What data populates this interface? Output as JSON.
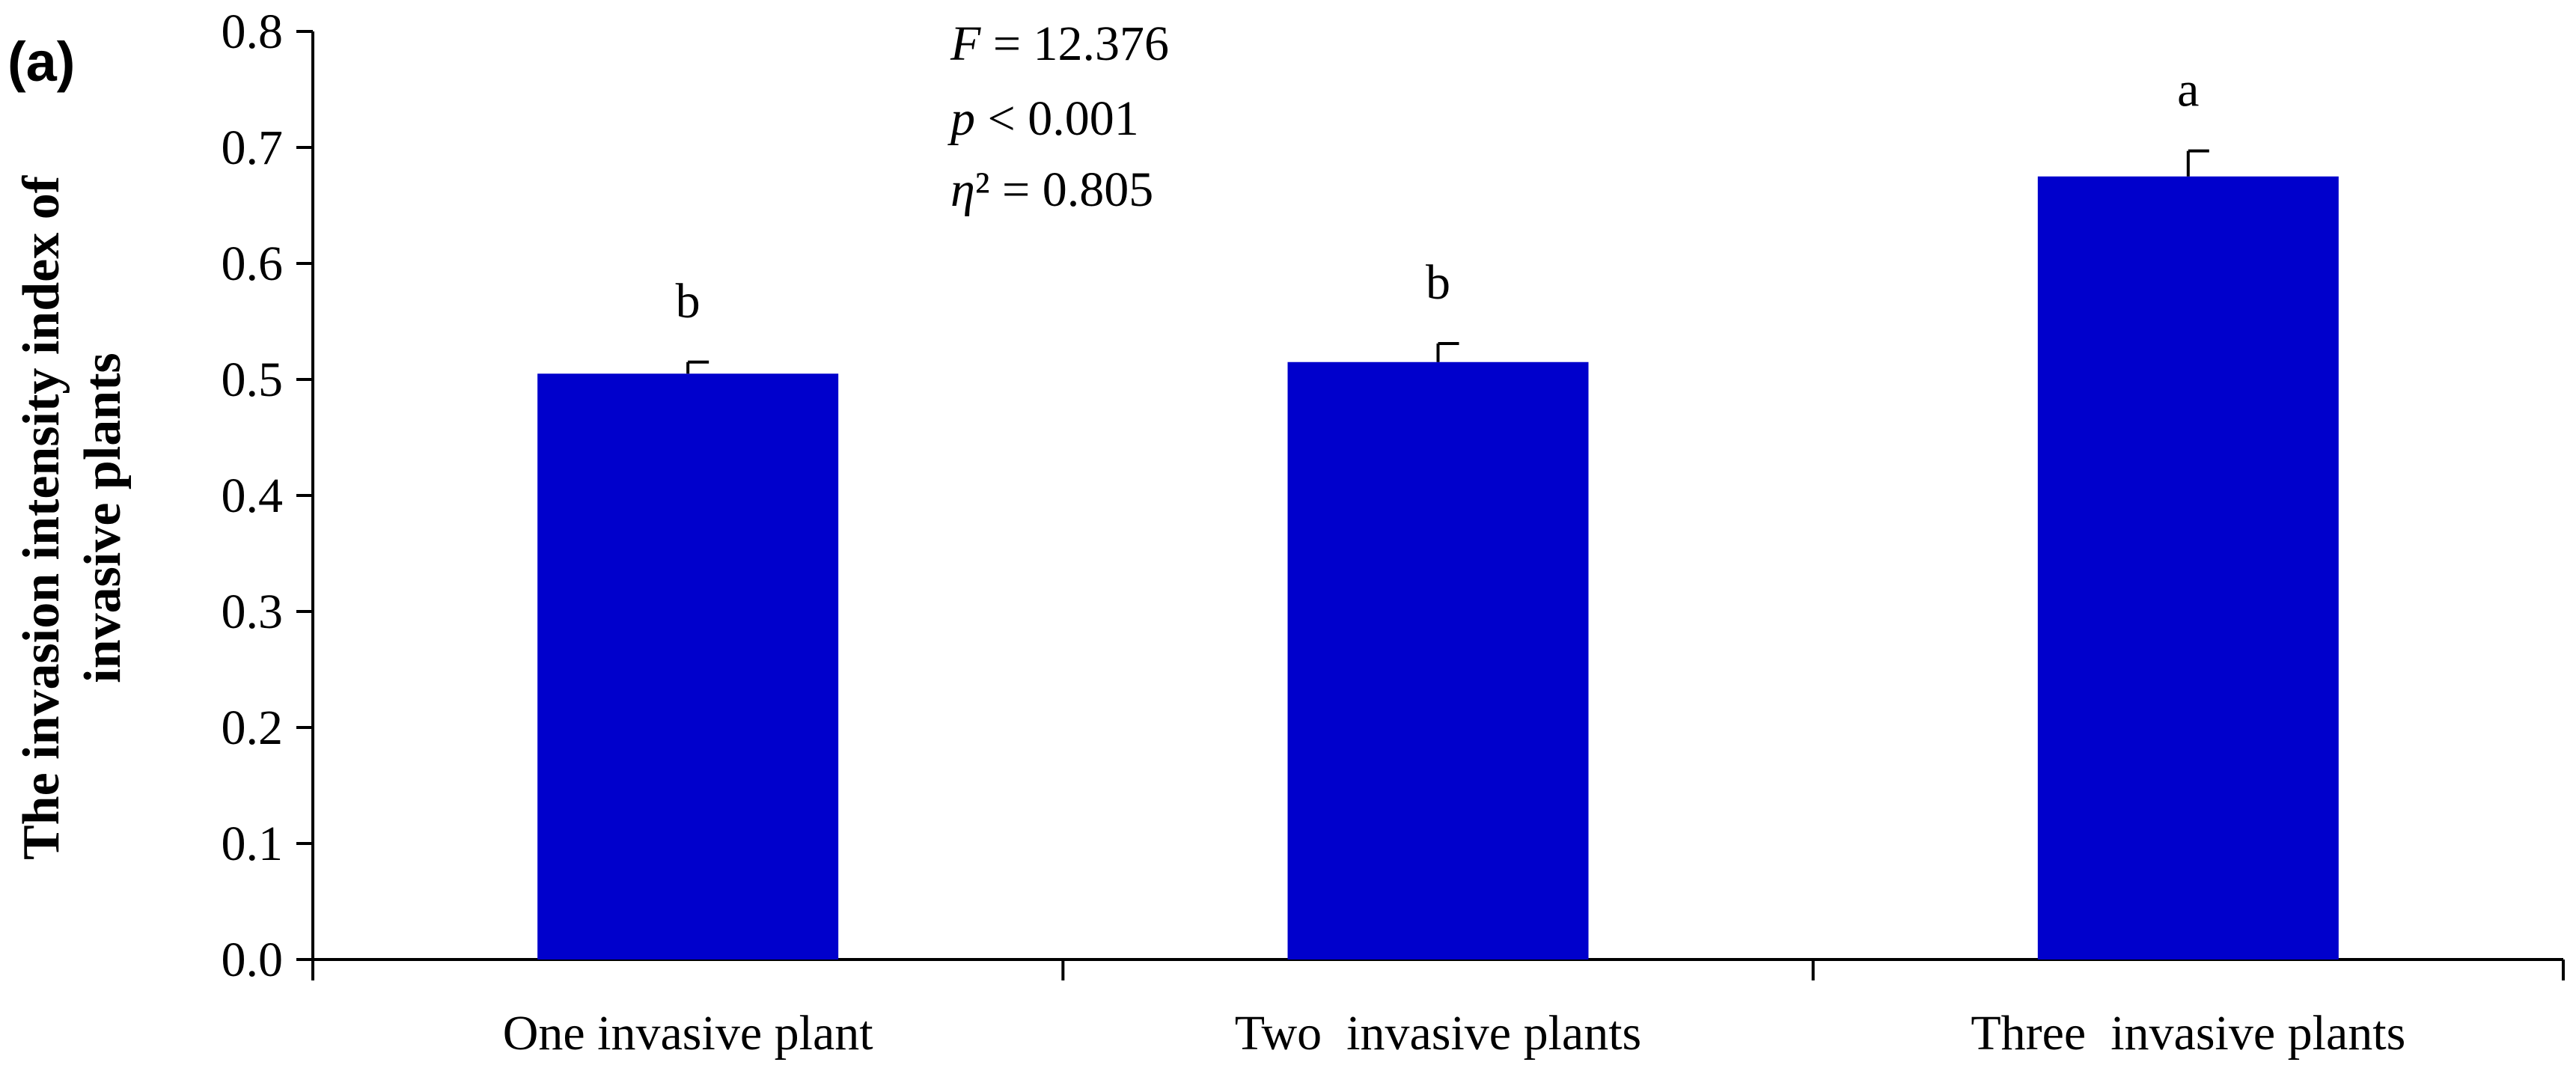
{
  "panel_label": "(a)",
  "stats": {
    "f_symbol": "F",
    "f_rest": " = 12.376",
    "p_symbol": "p",
    "p_rest": " < 0.001",
    "eta_symbol": "η",
    "eta_rest": "² = 0.805"
  },
  "chart_data": {
    "type": "bar",
    "categories": [
      "One invasive plant",
      "Two  invasive plants",
      "Three  invasive plants"
    ],
    "values": [
      0.505,
      0.515,
      0.675
    ],
    "errors": [
      0.01,
      0.016,
      0.022
    ],
    "significance_letters": [
      "b",
      "b",
      "a"
    ],
    "ylabel_lines": [
      "The invasion intensity index of",
      "invasive plants"
    ],
    "xlabel": "",
    "ylim": [
      0,
      0.8
    ],
    "yticks": [
      "0.0",
      "0.1",
      "0.2",
      "0.3",
      "0.4",
      "0.5",
      "0.6",
      "0.7",
      "0.8"
    ],
    "bar_color": "#0000CC",
    "grid": false,
    "legend": "none"
  }
}
